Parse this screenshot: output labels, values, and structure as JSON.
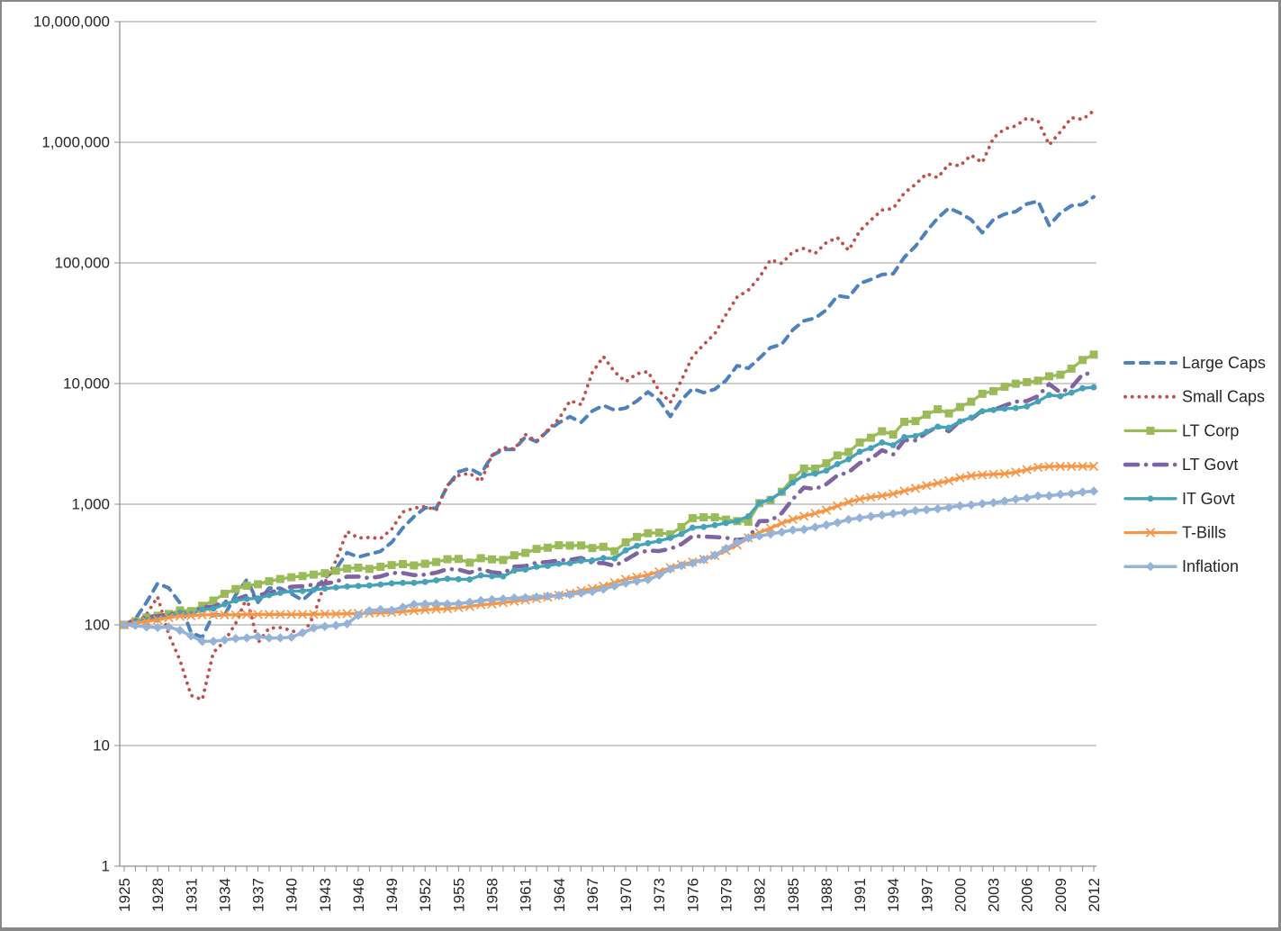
{
  "chart_data": {
    "type": "line",
    "title": "",
    "xlabel": "",
    "ylabel": "",
    "grid": "horizontal",
    "legend_position": "right",
    "x_axis": {
      "start_year": 1925,
      "end_year": 2012,
      "tick_step_years": 3,
      "tick_labels": [
        "1925",
        "1928",
        "1931",
        "1934",
        "1937",
        "1940",
        "1943",
        "1946",
        "1949",
        "1952",
        "1955",
        "1958",
        "1961",
        "1964",
        "1967",
        "1970",
        "1973",
        "1976",
        "1979",
        "1982",
        "1985",
        "1988",
        "1991",
        "1994",
        "1997",
        "2000",
        "2003",
        "2006",
        "2009",
        "2012"
      ]
    },
    "y_axis": {
      "scale": "log",
      "min": 1,
      "max": 10000000,
      "tick_labels": [
        "1",
        "10",
        "100",
        "1,000",
        "10,000",
        "100,000",
        "1,000,000",
        "10,000,000"
      ]
    },
    "style": {
      "grid_color": "#9C9C9C",
      "axis_color": "#8F8F8F",
      "text_color": "#262626",
      "frame_border": "#878787",
      "background": "#FFFFFF"
    },
    "series": [
      {
        "name": "Large Caps",
        "color": "#4F81BD",
        "line_style": "dash",
        "marker": "none",
        "width": 4,
        "values": [
          100,
          112,
          154,
          221,
          202,
          152,
          86,
          79,
          122,
          120,
          177,
          237,
          154,
          202,
          201,
          181,
          160,
          193,
          243,
          291,
          397,
          365,
          386,
          407,
          483,
          636,
          789,
          934,
          925,
          1411,
          1857,
          1979,
          1766,
          2532,
          2836,
          2850,
          3617,
          3302,
          4055,
          4724,
          5314,
          4777,
          5924,
          6582,
          6022,
          6263,
          7159,
          8519,
          7267,
          5341,
          7328,
          9072,
          8419,
          8975,
          10626,
          14069,
          13380,
          16243,
          19898,
          21151,
          27962,
          33135,
          34858,
          40714,
          53539,
          51826,
          67633,
          72840,
          80124,
          81166,
          111522,
          137284,
          183137,
          235514,
          284972,
          259040,
          228214,
          177779,
          228801,
          253740,
          266174,
          308229,
          325182,
          204864,
          259153,
          298285,
          304549,
          353277
        ]
      },
      {
        "name": "Small Caps",
        "color": "#C0504D",
        "line_style": "dot",
        "marker": "none",
        "width": 3.8,
        "values": [
          100,
          100,
          122,
          171,
          83,
          51,
          26,
          24,
          59,
          73,
          103,
          169,
          71,
          94,
          95,
          90,
          82,
          118,
          223,
          342,
          594,
          525,
          530,
          519,
          621,
          862,
          929,
          957,
          895,
          1437,
          1731,
          1805,
          1541,
          2542,
          2958,
          2861,
          3779,
          3329,
          4115,
          5082,
          7206,
          6701,
          12303,
          16732,
          12532,
          10352,
          12060,
          12591,
          8700,
          6969,
          10649,
          16761,
          21018,
          25957,
          37248,
          52110,
          59353,
          75972,
          106133,
          99022,
          123480,
          131999,
          119723,
          147140,
          162148,
          127124,
          183822,
          226652,
          274249,
          282751,
          380300,
          447233,
          549202,
          509110,
          660825,
          637036,
          782280,
          678236,
          1089926,
          1290472,
          1364029,
          1585001,
          1502581,
          951134,
          1218403,
          1599767,
          1546974,
          1828523
        ]
      },
      {
        "name": "LT Corp",
        "color": "#9BBB59",
        "line_style": "solid",
        "marker": "square",
        "width": 3.3,
        "values": [
          100,
          107,
          115,
          119,
          123,
          132,
          130,
          144,
          159,
          181,
          198,
          211,
          217,
          230,
          240,
          248,
          254,
          261,
          268,
          281,
          293,
          298,
          291,
          303,
          313,
          319,
          311,
          321,
          332,
          350,
          352,
          328,
          357,
          349,
          345,
          377,
          395,
          426,
          436,
          457,
          454,
          455,
          433,
          444,
          408,
          483,
          536,
          575,
          581,
          563,
          646,
          766,
          779,
          778,
          745,
          724,
          716,
          1020,
          1085,
          1268,
          1650,
          1978,
          1972,
          2183,
          2537,
          2709,
          3249,
          3554,
          4023,
          3790,
          4821,
          4888,
          5524,
          6120,
          5661,
          6391,
          7075,
          8229,
          8665,
          9419,
          9974,
          10293,
          10561,
          11490,
          11835,
          13303,
          15684,
          17362
        ]
      },
      {
        "name": "LT Govt",
        "color": "#8064A2",
        "line_style": "dash-dot",
        "marker": "none",
        "width": 4.6,
        "values": [
          100,
          108,
          117,
          118,
          122,
          127,
          121,
          141,
          141,
          155,
          162,
          175,
          175,
          185,
          195,
          207,
          209,
          216,
          220,
          227,
          251,
          251,
          244,
          252,
          269,
          269,
          258,
          261,
          271,
          290,
          287,
          271,
          291,
          273,
          267,
          304,
          307,
          328,
          332,
          343,
          346,
          359,
          326,
          325,
          308,
          345,
          391,
          413,
          409,
          427,
          466,
          544,
          540,
          534,
          527,
          506,
          516,
          724,
          729,
          843,
          1104,
          1374,
          1337,
          1467,
          1732,
          1839,
          2194,
          2372,
          2804,
          2585,
          3405,
          3374,
          3911,
          4423,
          4025,
          4890,
          5071,
          5974,
          6057,
          6572,
          7085,
          7170,
          7879,
          9920,
          8442,
          9295,
          11916,
          12321
        ]
      },
      {
        "name": "IT Govt",
        "color": "#45A2B8",
        "line_style": "solid",
        "marker": "circle",
        "width": 3.3,
        "values": [
          100,
          105,
          110,
          111,
          118,
          126,
          123,
          134,
          136,
          148,
          159,
          164,
          166,
          176,
          184,
          190,
          191,
          195,
          200,
          204,
          208,
          210,
          212,
          216,
          221,
          223,
          223,
          227,
          234,
          241,
          239,
          238,
          257,
          253,
          252,
          282,
          287,
          303,
          308,
          321,
          324,
          339,
          342,
          358,
          355,
          415,
          452,
          475,
          497,
          525,
          566,
          639,
          648,
          671,
          698,
          726,
          794,
          1026,
          1102,
          1256,
          1511,
          1739,
          1789,
          1898,
          2151,
          2359,
          2725,
          2921,
          3249,
          3083,
          3601,
          3676,
          3985,
          4392,
          4313,
          4856,
          5225,
          5899,
          6041,
          6180,
          6266,
          6460,
          7113,
          8045,
          7852,
          8409,
          9149,
          9305
        ]
      },
      {
        "name": "T-Bills",
        "color": "#F79646",
        "line_style": "solid",
        "marker": "x",
        "width": 3.3,
        "values": [
          100,
          103,
          107,
          110,
          115,
          118,
          119,
          121,
          121,
          121,
          121,
          122,
          122,
          122,
          122,
          122,
          122,
          122,
          123,
          123,
          124,
          124,
          125,
          126,
          127,
          129,
          131,
          133,
          135,
          136,
          139,
          142,
          147,
          149,
          153,
          157,
          161,
          165,
          170,
          176,
          183,
          192,
          200,
          210,
          224,
          239,
          249,
          259,
          276,
          298,
          316,
          332,
          349,
          374,
          413,
          459,
          526,
          582,
          633,
          696,
          749,
          796,
          839,
          893,
          968,
          1044,
          1102,
          1141,
          1174,
          1219,
          1288,
          1355,
          1426,
          1496,
          1567,
          1659,
          1722,
          1751,
          1769,
          1790,
          1844,
          1932,
          2023,
          2056,
          2058,
          2060,
          2060,
          2062
        ]
      },
      {
        "name": "Inflation",
        "color": "#95B3D7",
        "line_style": "solid",
        "marker": "diamond",
        "width": 3.5,
        "values": [
          100,
          99,
          96,
          95,
          96,
          90,
          81,
          73,
          73,
          75,
          77,
          78,
          80,
          78,
          78,
          79,
          86,
          94,
          97,
          99,
          102,
          120,
          131,
          134,
          132,
          140,
          148,
          149,
          150,
          149,
          150,
          154,
          159,
          162,
          164,
          167,
          168,
          170,
          173,
          175,
          178,
          184,
          189,
          198,
          210,
          222,
          230,
          237,
          258,
          290,
          310,
          325,
          347,
          378,
          429,
          482,
          525,
          545,
          566,
          588,
          611,
          618,
          645,
          673,
          704,
          747,
          770,
          793,
          814,
          836,
          857,
          885,
          900,
          915,
          939,
          971,
          987,
          1010,
          1030,
          1064,
          1100,
          1127,
          1173,
          1175,
          1206,
          1224,
          1261,
          1283
        ]
      }
    ]
  }
}
